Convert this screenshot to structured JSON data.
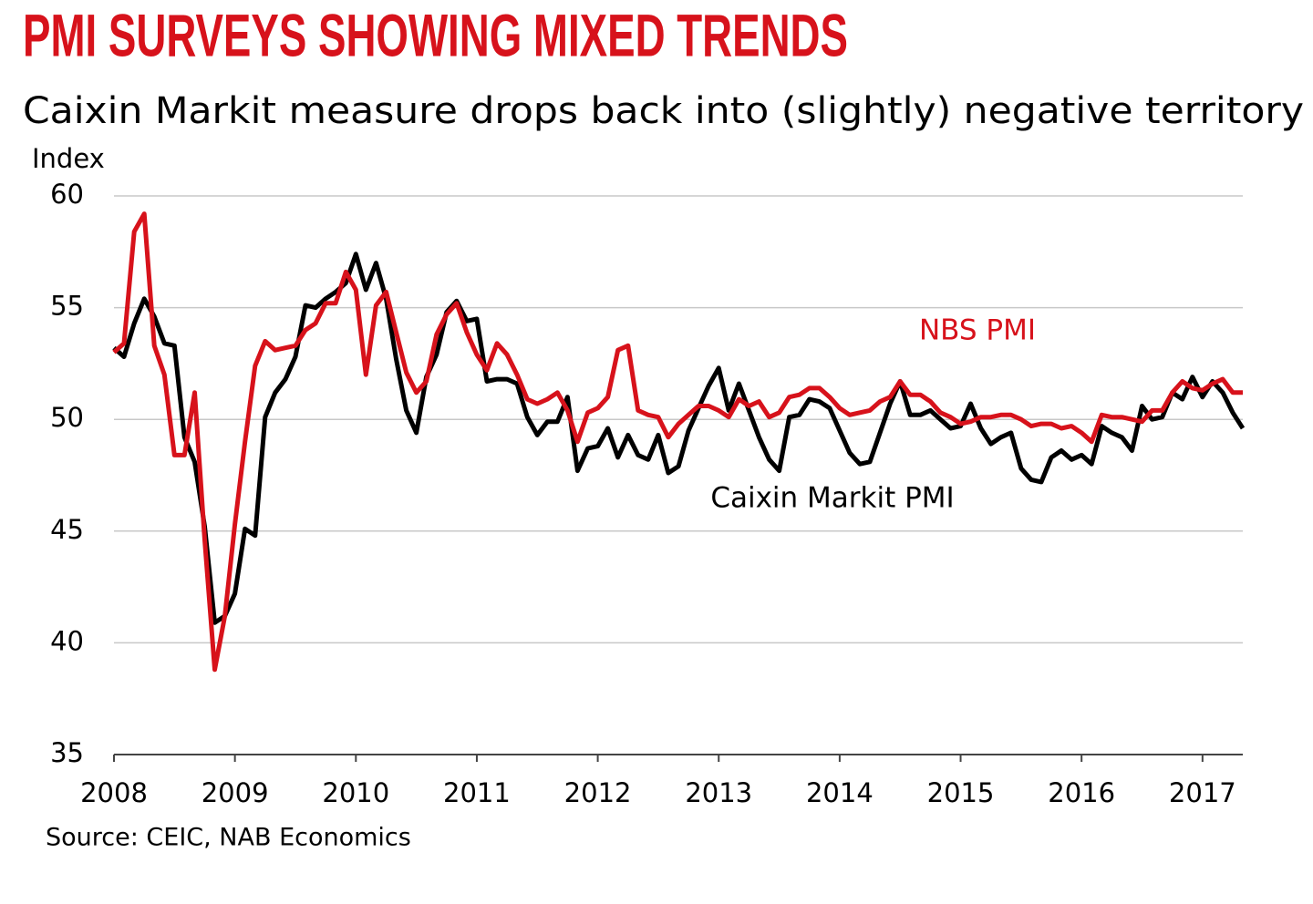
{
  "chart_data": {
    "type": "line",
    "title": "PMI SURVEYS SHOWING MIXED TRENDS",
    "subtitle": "Caixin Markit measure drops back into (slightly) negative territory",
    "y_label": "Index",
    "source": "Source: CEIC, NAB Economics",
    "x": [
      2008,
      2008.083,
      2008.167,
      2008.25,
      2008.333,
      2008.417,
      2008.5,
      2008.583,
      2008.667,
      2008.75,
      2008.833,
      2008.917,
      2009,
      2009.083,
      2009.167,
      2009.25,
      2009.333,
      2009.417,
      2009.5,
      2009.583,
      2009.667,
      2009.75,
      2009.833,
      2009.917,
      2010,
      2010.083,
      2010.167,
      2010.25,
      2010.333,
      2010.417,
      2010.5,
      2010.583,
      2010.667,
      2010.75,
      2010.833,
      2010.917,
      2011,
      2011.083,
      2011.167,
      2011.25,
      2011.333,
      2011.417,
      2011.5,
      2011.583,
      2011.667,
      2011.75,
      2011.833,
      2011.917,
      2012,
      2012.083,
      2012.167,
      2012.25,
      2012.333,
      2012.417,
      2012.5,
      2012.583,
      2012.667,
      2012.75,
      2012.833,
      2012.917,
      2013,
      2013.083,
      2013.167,
      2013.25,
      2013.333,
      2013.417,
      2013.5,
      2013.583,
      2013.667,
      2013.75,
      2013.833,
      2013.917,
      2014,
      2014.083,
      2014.167,
      2014.25,
      2014.333,
      2014.417,
      2014.5,
      2014.583,
      2014.667,
      2014.75,
      2014.833,
      2014.917,
      2015,
      2015.083,
      2015.167,
      2015.25,
      2015.333,
      2015.417,
      2015.5,
      2015.583,
      2015.667,
      2015.75,
      2015.833,
      2015.917,
      2016,
      2016.083,
      2016.167,
      2016.25,
      2016.333,
      2016.417,
      2016.5,
      2016.583,
      2016.667,
      2016.75,
      2016.833,
      2016.917,
      2017,
      2017.083,
      2017.167,
      2017.25,
      2017.333
    ],
    "series": [
      {
        "name": "NBS PMI",
        "color": "#d7121b",
        "values": [
          53.0,
          53.4,
          58.4,
          59.2,
          53.3,
          52.0,
          48.4,
          48.4,
          51.2,
          44.6,
          38.8,
          41.2,
          45.3,
          49.0,
          52.4,
          53.5,
          53.1,
          53.2,
          53.3,
          54.0,
          54.3,
          55.2,
          55.2,
          56.6,
          55.8,
          52.0,
          55.1,
          55.7,
          53.9,
          52.1,
          51.2,
          51.7,
          53.8,
          54.7,
          55.2,
          53.9,
          52.9,
          52.2,
          53.4,
          52.9,
          52.0,
          50.9,
          50.7,
          50.9,
          51.2,
          50.4,
          49.0,
          50.3,
          50.5,
          51.0,
          53.1,
          53.3,
          50.4,
          50.2,
          50.1,
          49.2,
          49.8,
          50.2,
          50.6,
          50.6,
          50.4,
          50.1,
          50.9,
          50.6,
          50.8,
          50.1,
          50.3,
          51.0,
          51.1,
          51.4,
          51.4,
          51.0,
          50.5,
          50.2,
          50.3,
          50.4,
          50.8,
          51.0,
          51.7,
          51.1,
          51.1,
          50.8,
          50.3,
          50.1,
          49.8,
          49.9,
          50.1,
          50.1,
          50.2,
          50.2,
          50.0,
          49.7,
          49.8,
          49.8,
          49.6,
          49.7,
          49.4,
          49.0,
          50.2,
          50.1,
          50.1,
          50.0,
          49.9,
          50.4,
          50.4,
          51.2,
          51.7,
          51.4,
          51.3,
          51.6,
          51.8,
          51.2,
          51.2
        ]
      },
      {
        "name": "Caixin Markit PMI",
        "color": "#000000",
        "values": [
          53.2,
          52.8,
          54.3,
          55.4,
          54.6,
          53.4,
          53.3,
          49.2,
          48.1,
          45.2,
          40.9,
          41.2,
          42.2,
          45.1,
          44.8,
          50.1,
          51.2,
          51.8,
          52.8,
          55.1,
          55.0,
          55.4,
          55.7,
          56.1,
          57.4,
          55.8,
          57.0,
          55.4,
          52.7,
          50.4,
          49.4,
          51.9,
          52.9,
          54.8,
          55.3,
          54.4,
          54.5,
          51.7,
          51.8,
          51.8,
          51.6,
          50.1,
          49.3,
          49.9,
          49.9,
          51.0,
          47.7,
          48.7,
          48.8,
          49.6,
          48.3,
          49.3,
          48.4,
          48.2,
          49.3,
          47.6,
          47.9,
          49.5,
          50.5,
          51.5,
          52.3,
          50.4,
          51.6,
          50.4,
          49.2,
          48.2,
          47.7,
          50.1,
          50.2,
          50.9,
          50.8,
          50.5,
          49.5,
          48.5,
          48.0,
          48.1,
          49.4,
          50.7,
          51.7,
          50.2,
          50.2,
          50.4,
          50.0,
          49.6,
          49.7,
          50.7,
          49.6,
          48.9,
          49.2,
          49.4,
          47.8,
          47.3,
          47.2,
          48.3,
          48.6,
          48.2,
          48.4,
          48.0,
          49.7,
          49.4,
          49.2,
          48.6,
          50.6,
          50.0,
          50.1,
          51.2,
          50.9,
          51.9,
          51.0,
          51.7,
          51.2,
          50.3,
          49.6
        ]
      }
    ],
    "xlim": [
      2008,
      2017.333
    ],
    "xticks": [
      2008,
      2009,
      2010,
      2011,
      2012,
      2013,
      2014,
      2015,
      2016,
      2017
    ],
    "ylim": [
      35,
      60
    ],
    "yticks": [
      35,
      40,
      45,
      50,
      55,
      60
    ],
    "grid": true
  }
}
